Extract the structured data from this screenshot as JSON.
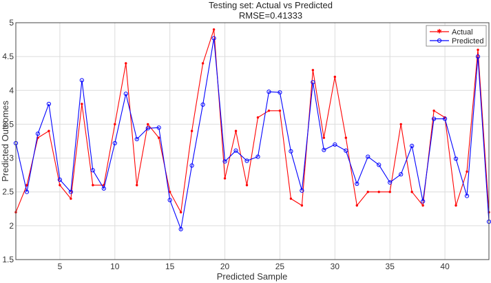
{
  "chart_data": {
    "type": "line",
    "title": "Testing set: Actual vs Predicted",
    "subtitle": "RMSE=0.41333",
    "xlabel": "Predicted Sample",
    "ylabel": "Predicted Outcomes",
    "xlim": [
      1,
      44
    ],
    "ylim": [
      1.5,
      5
    ],
    "xticks": [
      5,
      10,
      15,
      20,
      25,
      30,
      35,
      40
    ],
    "yticks": [
      1.5,
      2,
      2.5,
      3,
      3.5,
      4,
      4.5,
      5
    ],
    "grid": true,
    "legend_position": "top-right",
    "x": [
      1,
      2,
      3,
      4,
      5,
      6,
      7,
      8,
      9,
      10,
      11,
      12,
      13,
      14,
      15,
      16,
      17,
      18,
      19,
      20,
      21,
      22,
      23,
      24,
      25,
      26,
      27,
      28,
      29,
      30,
      31,
      32,
      33,
      34,
      35,
      36,
      37,
      38,
      39,
      40,
      41,
      42,
      43,
      44
    ],
    "series": [
      {
        "name": "Actual",
        "color": "#ff0000",
        "marker": "star",
        "values": [
          2.2,
          2.6,
          3.3,
          3.4,
          2.6,
          2.4,
          3.8,
          2.6,
          2.6,
          3.5,
          4.4,
          2.6,
          3.5,
          3.3,
          2.5,
          2.2,
          3.4,
          4.4,
          4.9,
          2.7,
          3.4,
          2.6,
          3.6,
          3.7,
          3.7,
          2.4,
          2.3,
          4.3,
          3.3,
          4.2,
          3.3,
          2.3,
          2.5,
          2.5,
          2.5,
          3.5,
          2.5,
          2.3,
          3.7,
          3.6,
          2.3,
          2.8,
          4.6,
          2.2
        ]
      },
      {
        "name": "Predicted",
        "color": "#0000ff",
        "marker": "circle",
        "values": [
          3.22,
          2.5,
          3.36,
          3.8,
          2.68,
          2.5,
          4.15,
          2.82,
          2.55,
          3.22,
          3.95,
          3.28,
          3.44,
          3.45,
          2.38,
          1.95,
          2.89,
          3.79,
          4.77,
          2.95,
          3.11,
          2.96,
          3.02,
          3.98,
          3.97,
          3.1,
          2.52,
          4.12,
          3.12,
          3.2,
          3.11,
          2.62,
          3.02,
          2.9,
          2.64,
          2.76,
          3.18,
          2.36,
          3.58,
          3.58,
          2.99,
          2.44,
          4.5,
          2.06
        ]
      }
    ]
  }
}
